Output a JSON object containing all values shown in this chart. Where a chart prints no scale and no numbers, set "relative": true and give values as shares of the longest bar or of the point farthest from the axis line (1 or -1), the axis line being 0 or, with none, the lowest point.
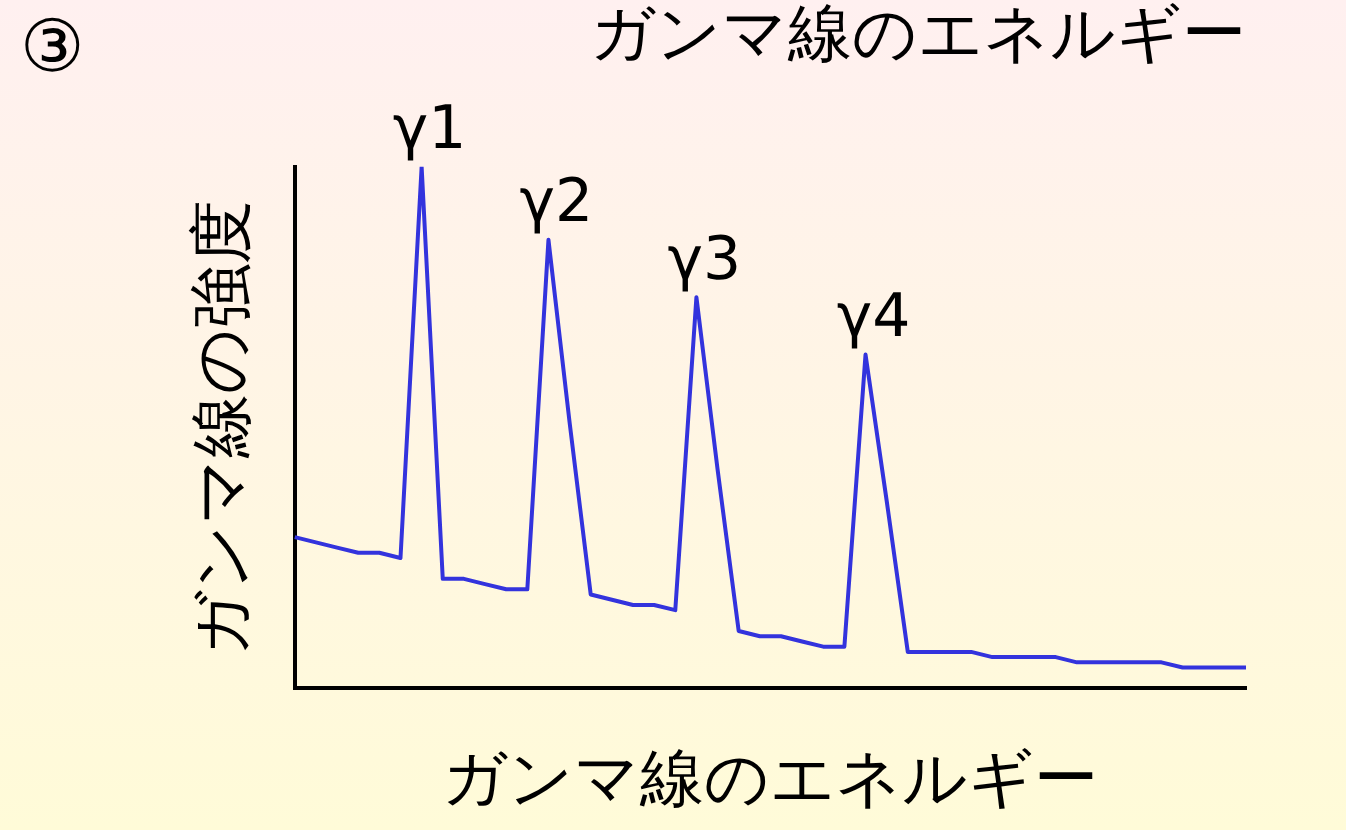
{
  "chart_data": {
    "type": "line",
    "title": "ガンマ線のエネルギー",
    "xlabel": "ガンマ線のエネルギー",
    "ylabel": "ガンマ線の強度",
    "relative": true,
    "grid": false,
    "legend": false,
    "marker": "none",
    "line_style": "solid",
    "categories": [
      null,
      null,
      null,
      null,
      null,
      null,
      null,
      null,
      null,
      null,
      null,
      null,
      null,
      null,
      null,
      null,
      null,
      null,
      null,
      null,
      null,
      null,
      null,
      null,
      null,
      null,
      null,
      null,
      null,
      null,
      null,
      null,
      null,
      null,
      null,
      null,
      null,
      null,
      null,
      null,
      null,
      null,
      null,
      null,
      null,
      null
    ],
    "series": [
      {
        "color": "#3333dd",
        "values": [
          0.29,
          0.28,
          0.27,
          0.26,
          0.26,
          0.25,
          1,
          0.21,
          0.21,
          0.2,
          0.19,
          0.19,
          0.86,
          0.51,
          0.18,
          0.17,
          0.16,
          0.16,
          0.15,
          0.75,
          0.42,
          0.11,
          0.1,
          0.1,
          0.09,
          0.08,
          0.08,
          0.64,
          0.36,
          0.07,
          0.07,
          0.07,
          0.07,
          0.06,
          0.06,
          0.06,
          0.06,
          0.05,
          0.05,
          0.05,
          0.05,
          0.05,
          0.04,
          0.04,
          0.04,
          0.04
        ]
      }
    ],
    "annotations": [
      "③",
      "γ1",
      "γ2",
      "γ3",
      "γ4"
    ]
  }
}
